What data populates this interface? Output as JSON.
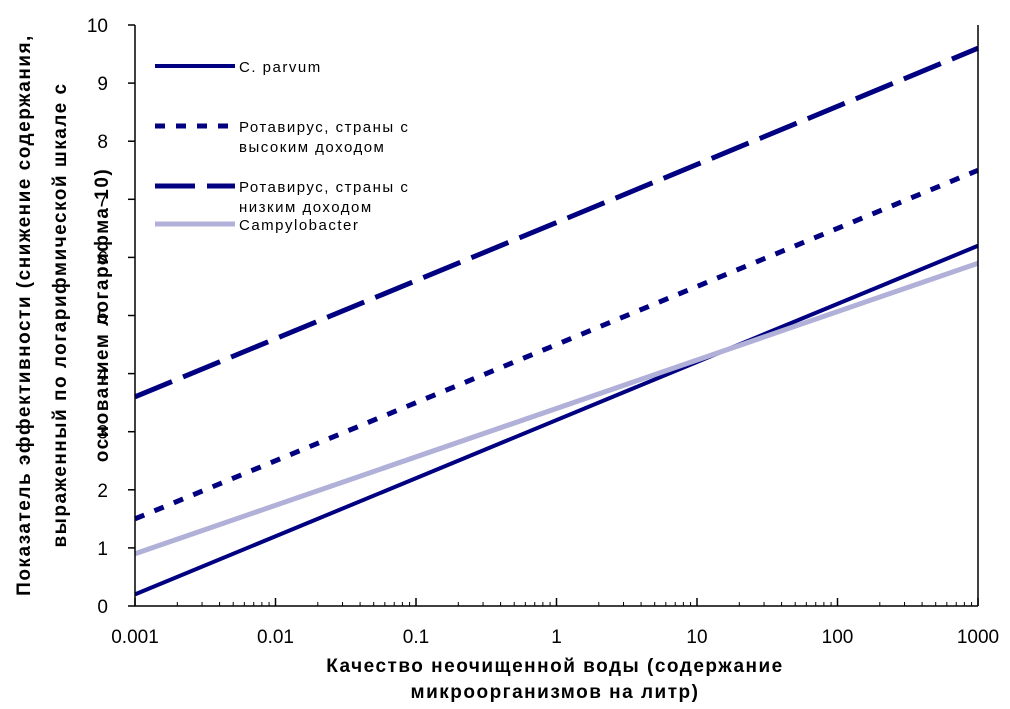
{
  "chart_data": {
    "type": "line",
    "x_scale": "log",
    "x_ticks": [
      "0.001",
      "0.01",
      "0.1",
      "1",
      "10",
      "100",
      "1000"
    ],
    "y_ticks": [
      "0",
      "1",
      "2",
      "3",
      "4",
      "5",
      "6",
      "7",
      "8",
      "9",
      "10"
    ],
    "xlim": [
      0.001,
      1000
    ],
    "ylim": [
      0,
      10
    ],
    "xlabel": [
      "Качество неочищенной воды (содержание",
      "микроорганизмов на литр)"
    ],
    "ylabel": [
      "Показатель эффективности (снижение содержания,",
      "выраженный по логарифмической шкале с",
      "основанием логарифма 10)"
    ],
    "legend_position": "top-left",
    "grid": false,
    "series": [
      {
        "name": "C. parvum",
        "style": "solid",
        "color": "#000080",
        "x": [
          0.001,
          1000
        ],
        "y": [
          0.2,
          6.2
        ]
      },
      {
        "name": "Ротавирус, страны с высоким доходом",
        "legend_lines": [
          "Ротавирус, страны с",
          "высоким доходом"
        ],
        "style": "dotted",
        "color": "#000080",
        "x": [
          0.001,
          1000
        ],
        "y": [
          1.5,
          7.5
        ]
      },
      {
        "name": "Ротавирус, страны с низким доходом",
        "legend_lines": [
          "Ротавирус, страны с",
          "низким доходом"
        ],
        "style": "dashed",
        "color": "#000080",
        "x": [
          0.001,
          1000
        ],
        "y": [
          3.6,
          9.6
        ]
      },
      {
        "name": "Campylobacter",
        "style": "solid-light",
        "color": "#b0b0d8",
        "x": [
          0.001,
          1000
        ],
        "y": [
          0.9,
          5.9
        ]
      }
    ]
  }
}
